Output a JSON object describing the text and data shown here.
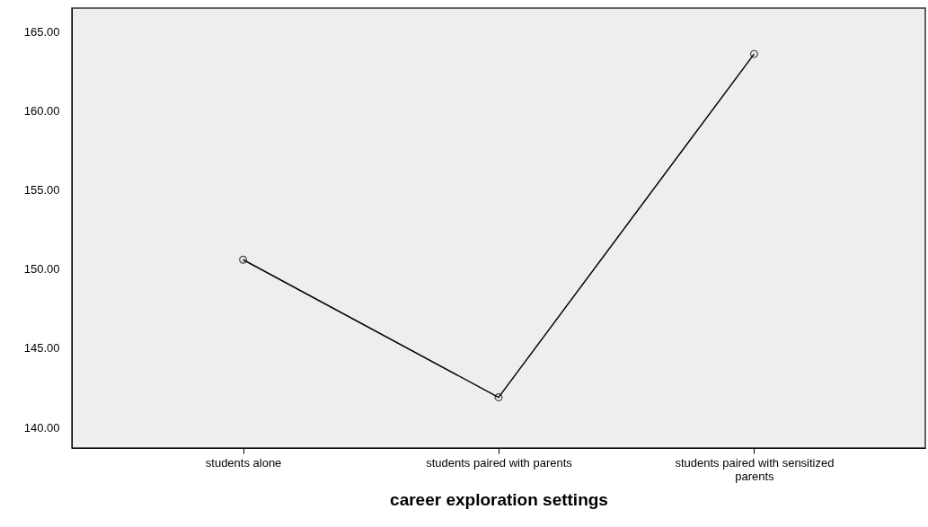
{
  "chart_data": {
    "type": "line",
    "xlabel": "career exploration settings",
    "categories": [
      "students alone",
      "students paired with parents",
      "students paired with sensitized parents"
    ],
    "series": [
      {
        "color": "#000000",
        "values": [
          150.6,
          141.9,
          163.6
        ]
      }
    ],
    "ylim": [
      138.7,
      166.5
    ],
    "yticks": [
      {
        "value": 140,
        "label": "140.00"
      },
      {
        "value": 145,
        "label": "145.00"
      },
      {
        "value": 150,
        "label": "150.00"
      },
      {
        "value": 155,
        "label": "155.00"
      },
      {
        "value": 160,
        "label": "160.00"
      },
      {
        "value": 165,
        "label": "165.00"
      }
    ],
    "grid": false,
    "marker": "circle",
    "line_style": "solid"
  }
}
